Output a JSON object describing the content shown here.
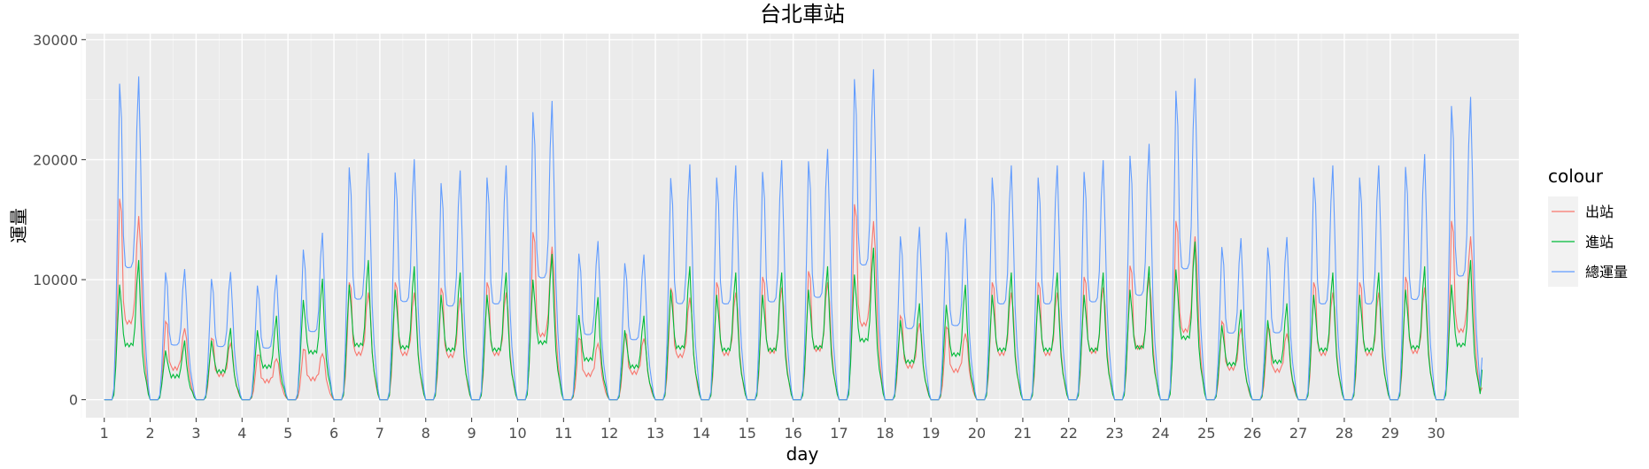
{
  "chart_data": {
    "type": "line",
    "title": "台北車站",
    "xlabel": "day",
    "ylabel": "運量",
    "legend_title": "colour",
    "legend_position": "right",
    "grid": true,
    "xlim": [
      0.6,
      31.8
    ],
    "ylim": [
      -1500,
      30500
    ],
    "x_ticks": [
      1,
      2,
      3,
      4,
      5,
      6,
      7,
      8,
      9,
      10,
      11,
      12,
      13,
      14,
      15,
      16,
      17,
      18,
      19,
      20,
      21,
      22,
      23,
      24,
      25,
      26,
      27,
      28,
      29,
      30
    ],
    "x_tick_labels": [
      "1",
      "2",
      "3",
      "4",
      "5",
      "6",
      "7",
      "8",
      "9",
      "10",
      "11",
      "12",
      "13",
      "14",
      "15",
      "16",
      "17",
      "18",
      "19",
      "20",
      "21",
      "22",
      "23",
      "24",
      "25",
      "26",
      "27",
      "28",
      "29",
      "30"
    ],
    "y_ticks": [
      0,
      10000,
      20000,
      30000
    ],
    "y_tick_labels": [
      "0",
      "10000",
      "20000",
      "30000"
    ],
    "series": [
      {
        "name": "出站",
        "color": "#F8766D"
      },
      {
        "name": "進站",
        "color": "#00BA38"
      },
      {
        "name": "總運量",
        "color": "#619CFF"
      }
    ],
    "days": [
      {
        "day": 1,
        "peak_out": 18000,
        "peak_in": 11000
      },
      {
        "day": 2,
        "peak_out": 7000,
        "peak_in": 4500
      },
      {
        "day": 3,
        "peak_out": 5500,
        "peak_in": 5500
      },
      {
        "day": 4,
        "peak_out": 4000,
        "peak_in": 6500
      },
      {
        "day": 5,
        "peak_out": 4500,
        "peak_in": 9500
      },
      {
        "day": 6,
        "peak_out": 10500,
        "peak_in": 11000
      },
      {
        "day": 7,
        "peak_out": 10500,
        "peak_in": 10500
      },
      {
        "day": 8,
        "peak_out": 10000,
        "peak_in": 10000
      },
      {
        "day": 9,
        "peak_out": 10500,
        "peak_in": 10000
      },
      {
        "day": 10,
        "peak_out": 15000,
        "peak_in": 11500
      },
      {
        "day": 11,
        "peak_out": 5500,
        "peak_in": 8000
      },
      {
        "day": 12,
        "peak_out": 6000,
        "peak_in": 6500
      },
      {
        "day": 13,
        "peak_out": 10000,
        "peak_in": 10500
      },
      {
        "day": 14,
        "peak_out": 10500,
        "peak_in": 10000
      },
      {
        "day": 15,
        "peak_out": 11000,
        "peak_in": 10000
      },
      {
        "day": 16,
        "peak_out": 11500,
        "peak_in": 10500
      },
      {
        "day": 17,
        "peak_out": 17500,
        "peak_in": 12000
      },
      {
        "day": 18,
        "peak_out": 7500,
        "peak_in": 7500
      },
      {
        "day": 19,
        "peak_out": 6500,
        "peak_in": 9000
      },
      {
        "day": 20,
        "peak_out": 10500,
        "peak_in": 10000
      },
      {
        "day": 21,
        "peak_out": 10500,
        "peak_in": 10000
      },
      {
        "day": 22,
        "peak_out": 11000,
        "peak_in": 10000
      },
      {
        "day": 23,
        "peak_out": 12000,
        "peak_in": 10500
      },
      {
        "day": 24,
        "peak_out": 16000,
        "peak_in": 12500
      },
      {
        "day": 25,
        "peak_out": 7000,
        "peak_in": 7000
      },
      {
        "day": 26,
        "peak_out": 6500,
        "peak_in": 7500
      },
      {
        "day": 27,
        "peak_out": 10500,
        "peak_in": 10000
      },
      {
        "day": 28,
        "peak_out": 10500,
        "peak_in": 10000
      },
      {
        "day": 29,
        "peak_out": 11000,
        "peak_in": 10500
      },
      {
        "day": 30,
        "peak_out": 16000,
        "peak_in": 11000
      }
    ]
  }
}
